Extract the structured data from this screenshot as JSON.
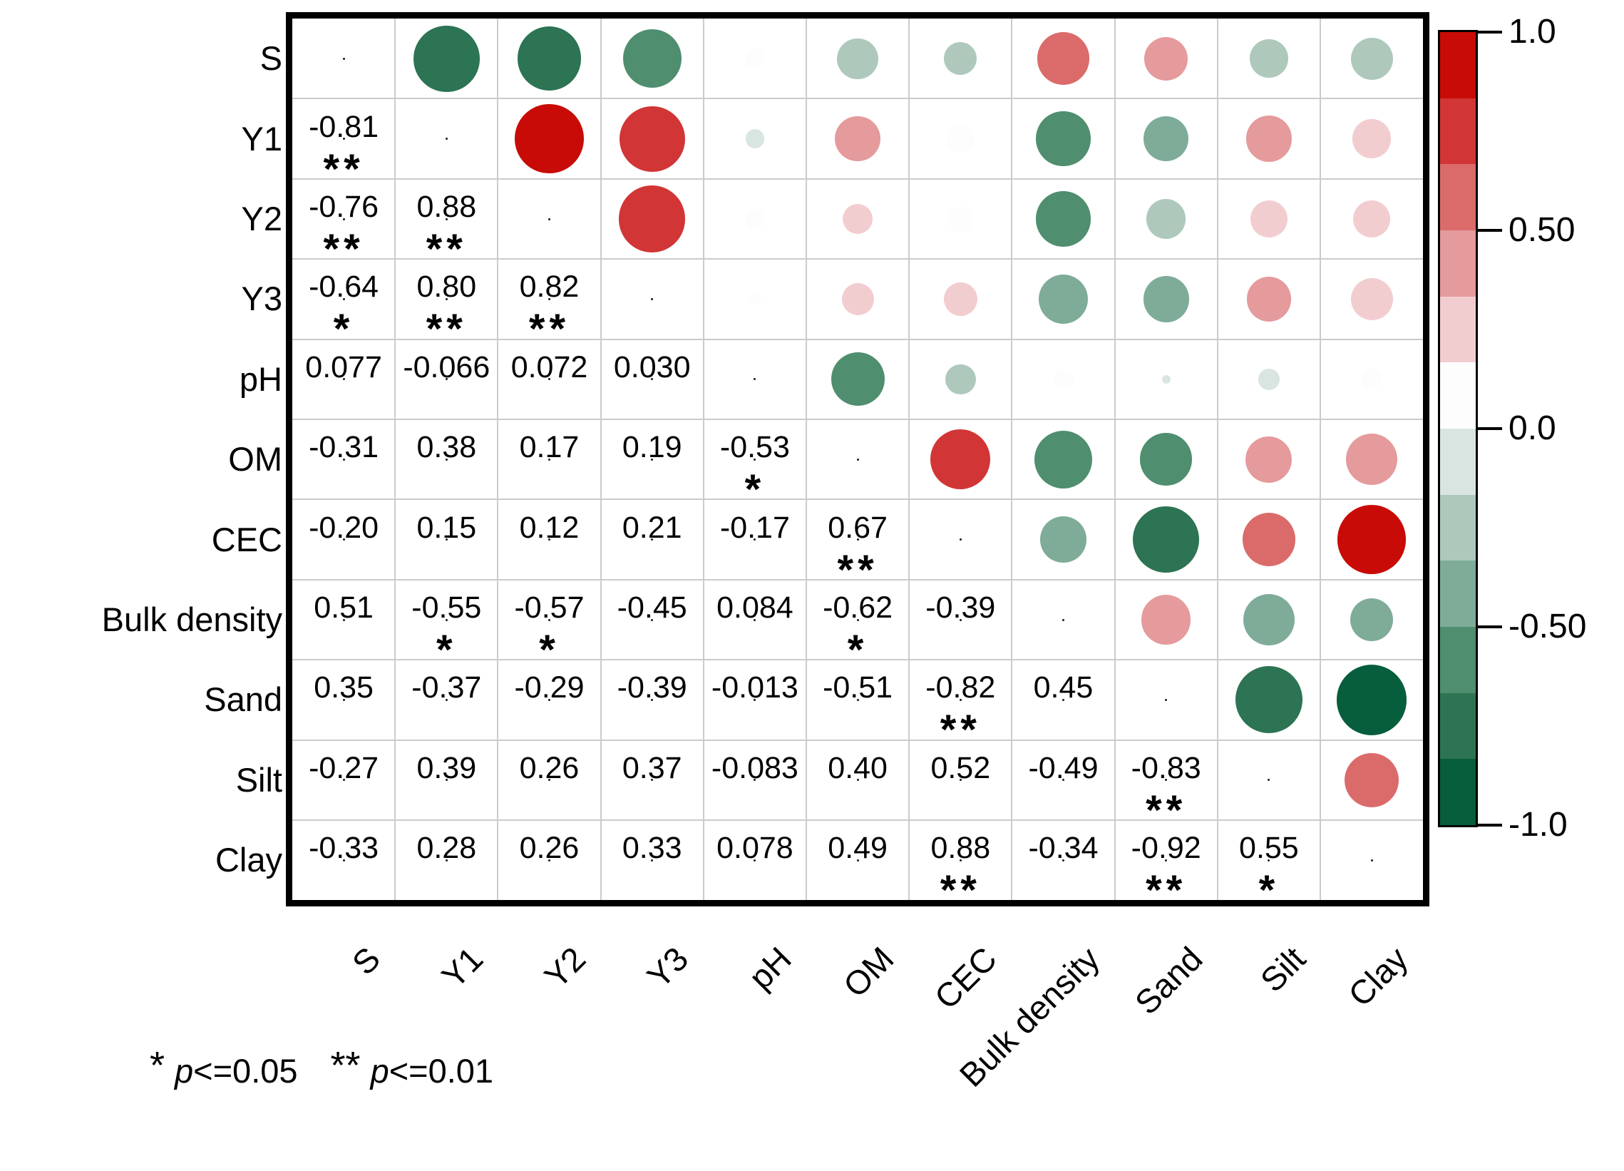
{
  "chart_data": {
    "type": "heatmap",
    "subtype": "correlation-matrix",
    "description": "Pairwise correlation matrix: lower triangle shows coefficients with significance stars, upper triangle shows circles sized by |r| and colored by sign/strength",
    "variables": [
      "S",
      "Y1",
      "Y2",
      "Y3",
      "pH",
      "OM",
      "CEC",
      "Bulk density",
      "Sand",
      "Silt",
      "Clay"
    ],
    "matrix_rows": [
      {
        "var": "S",
        "cells": []
      },
      {
        "var": "Y1",
        "cells": [
          {
            "v": "-0.81",
            "sig": "**"
          }
        ]
      },
      {
        "var": "Y2",
        "cells": [
          {
            "v": "-0.76",
            "sig": "**"
          },
          {
            "v": "0.88",
            "sig": "**"
          }
        ]
      },
      {
        "var": "Y3",
        "cells": [
          {
            "v": "-0.64",
            "sig": "*"
          },
          {
            "v": "0.80",
            "sig": "**"
          },
          {
            "v": "0.82",
            "sig": "**"
          }
        ]
      },
      {
        "var": "pH",
        "cells": [
          {
            "v": "0.077",
            "sig": ""
          },
          {
            "v": "-0.066",
            "sig": ""
          },
          {
            "v": "0.072",
            "sig": ""
          },
          {
            "v": "0.030",
            "sig": ""
          }
        ]
      },
      {
        "var": "OM",
        "cells": [
          {
            "v": "-0.31",
            "sig": ""
          },
          {
            "v": "0.38",
            "sig": ""
          },
          {
            "v": "0.17",
            "sig": ""
          },
          {
            "v": "0.19",
            "sig": ""
          },
          {
            "v": "-0.53",
            "sig": "*"
          }
        ]
      },
      {
        "var": "CEC",
        "cells": [
          {
            "v": "-0.20",
            "sig": ""
          },
          {
            "v": "0.15",
            "sig": ""
          },
          {
            "v": "0.12",
            "sig": ""
          },
          {
            "v": "0.21",
            "sig": ""
          },
          {
            "v": "-0.17",
            "sig": ""
          },
          {
            "v": "0.67",
            "sig": "**"
          }
        ]
      },
      {
        "var": "Bulk density",
        "cells": [
          {
            "v": "0.51",
            "sig": ""
          },
          {
            "v": "-0.55",
            "sig": "*"
          },
          {
            "v": "-0.57",
            "sig": "*"
          },
          {
            "v": "-0.45",
            "sig": ""
          },
          {
            "v": "0.084",
            "sig": ""
          },
          {
            "v": "-0.62",
            "sig": "*"
          },
          {
            "v": "-0.39",
            "sig": ""
          }
        ]
      },
      {
        "var": "Sand",
        "cells": [
          {
            "v": "0.35",
            "sig": ""
          },
          {
            "v": "-0.37",
            "sig": ""
          },
          {
            "v": "-0.29",
            "sig": ""
          },
          {
            "v": "-0.39",
            "sig": ""
          },
          {
            "v": "-0.013",
            "sig": ""
          },
          {
            "v": "-0.51",
            "sig": ""
          },
          {
            "v": "-0.82",
            "sig": "**"
          },
          {
            "v": "0.45",
            "sig": ""
          }
        ]
      },
      {
        "var": "Silt",
        "cells": [
          {
            "v": "-0.27",
            "sig": ""
          },
          {
            "v": "0.39",
            "sig": ""
          },
          {
            "v": "0.26",
            "sig": ""
          },
          {
            "v": "0.37",
            "sig": ""
          },
          {
            "v": "-0.083",
            "sig": ""
          },
          {
            "v": "0.40",
            "sig": ""
          },
          {
            "v": "0.52",
            "sig": ""
          },
          {
            "v": "-0.49",
            "sig": ""
          },
          {
            "v": "-0.83",
            "sig": "**"
          }
        ]
      },
      {
        "var": "Clay",
        "cells": [
          {
            "v": "-0.33",
            "sig": ""
          },
          {
            "v": "0.28",
            "sig": ""
          },
          {
            "v": "0.26",
            "sig": ""
          },
          {
            "v": "0.33",
            "sig": ""
          },
          {
            "v": "0.078",
            "sig": ""
          },
          {
            "v": "0.49",
            "sig": ""
          },
          {
            "v": "0.88",
            "sig": "**"
          },
          {
            "v": "-0.34",
            "sig": ""
          },
          {
            "v": "-0.92",
            "sig": "**"
          },
          {
            "v": "0.55",
            "sig": "*"
          }
        ]
      }
    ],
    "colorbar": {
      "range": [
        -1,
        1
      ],
      "tick_labels": [
        "1.0",
        "0.50",
        "0.0",
        "-0.50",
        "-1.0"
      ],
      "tick_values": [
        1.0,
        0.5,
        0.0,
        -0.5,
        -1.0
      ],
      "palette_neg_to_pos": [
        "#075E3C",
        "#2C7453",
        "#4F8E6F",
        "#7EAC98",
        "#AEC9BC",
        "#D9E5E0",
        "#FDFDFD",
        "#F2CDD0",
        "#E59A9C",
        "#DB6B6B",
        "#D23535",
        "#C80B06"
      ],
      "legend_position": "right"
    },
    "grid": "on",
    "significance_note": {
      "sig1_symbol": "*",
      "sig1_p": "p",
      "sig1_cond": "<=0.05",
      "sig2_symbol": "**",
      "sig2_p": "p",
      "sig2_cond": "<=0.01"
    }
  }
}
